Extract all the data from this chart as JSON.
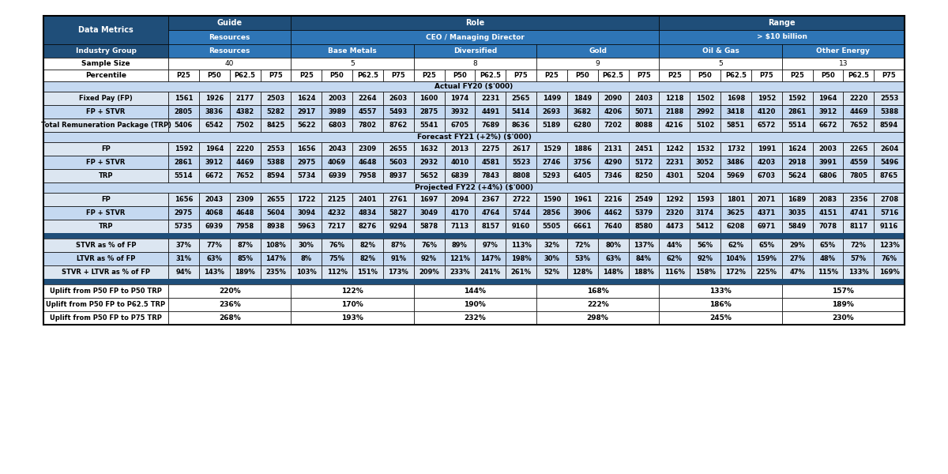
{
  "section1_rows": [
    [
      "Fixed Pay (FP)",
      "1561",
      "1926",
      "2177",
      "2503",
      "1624",
      "2003",
      "2264",
      "2603",
      "1600",
      "1974",
      "2231",
      "2565",
      "1499",
      "1849",
      "2090",
      "2403",
      "1218",
      "1502",
      "1698",
      "1952",
      "1592",
      "1964",
      "2220",
      "2553"
    ],
    [
      "FP + STVR",
      "2805",
      "3836",
      "4382",
      "5282",
      "2917",
      "3989",
      "4557",
      "5493",
      "2875",
      "3932",
      "4491",
      "5414",
      "2693",
      "3682",
      "4206",
      "5071",
      "2188",
      "2992",
      "3418",
      "4120",
      "2861",
      "3912",
      "4469",
      "5388"
    ],
    [
      "Total Remuneration Package (TRP)",
      "5406",
      "6542",
      "7502",
      "8425",
      "5622",
      "6803",
      "7802",
      "8762",
      "5541",
      "6705",
      "7689",
      "8636",
      "5189",
      "6280",
      "7202",
      "8088",
      "4216",
      "5102",
      "5851",
      "6572",
      "5514",
      "6672",
      "7652",
      "8594"
    ]
  ],
  "section2_rows": [
    [
      "FP",
      "1592",
      "1964",
      "2220",
      "2553",
      "1656",
      "2043",
      "2309",
      "2655",
      "1632",
      "2013",
      "2275",
      "2617",
      "1529",
      "1886",
      "2131",
      "2451",
      "1242",
      "1532",
      "1732",
      "1991",
      "1624",
      "2003",
      "2265",
      "2604"
    ],
    [
      "FP + STVR",
      "2861",
      "3912",
      "4469",
      "5388",
      "2975",
      "4069",
      "4648",
      "5603",
      "2932",
      "4010",
      "4581",
      "5523",
      "2746",
      "3756",
      "4290",
      "5172",
      "2231",
      "3052",
      "3486",
      "4203",
      "2918",
      "3991",
      "4559",
      "5496"
    ],
    [
      "TRP",
      "5514",
      "6672",
      "7652",
      "8594",
      "5734",
      "6939",
      "7958",
      "8937",
      "5652",
      "6839",
      "7843",
      "8808",
      "5293",
      "6405",
      "7346",
      "8250",
      "4301",
      "5204",
      "5969",
      "6703",
      "5624",
      "6806",
      "7805",
      "8765"
    ]
  ],
  "section3_rows": [
    [
      "FP",
      "1656",
      "2043",
      "2309",
      "2655",
      "1722",
      "2125",
      "2401",
      "2761",
      "1697",
      "2094",
      "2367",
      "2722",
      "1590",
      "1961",
      "2216",
      "2549",
      "1292",
      "1593",
      "1801",
      "2071",
      "1689",
      "2083",
      "2356",
      "2708"
    ],
    [
      "FP + STVR",
      "2975",
      "4068",
      "4648",
      "5604",
      "3094",
      "4232",
      "4834",
      "5827",
      "3049",
      "4170",
      "4764",
      "5744",
      "2856",
      "3906",
      "4462",
      "5379",
      "2320",
      "3174",
      "3625",
      "4371",
      "3035",
      "4151",
      "4741",
      "5716"
    ],
    [
      "TRP",
      "5735",
      "6939",
      "7958",
      "8938",
      "5963",
      "7217",
      "8276",
      "9294",
      "5878",
      "7113",
      "8157",
      "9160",
      "5505",
      "6661",
      "7640",
      "8580",
      "4473",
      "5412",
      "6208",
      "6971",
      "5849",
      "7078",
      "8117",
      "9116"
    ]
  ],
  "section4_rows": [
    [
      "STVR as % of FP",
      "37%",
      "77%",
      "87%",
      "108%",
      "30%",
      "76%",
      "82%",
      "87%",
      "76%",
      "89%",
      "97%",
      "113%",
      "32%",
      "72%",
      "80%",
      "137%",
      "44%",
      "56%",
      "62%",
      "65%",
      "29%",
      "65%",
      "72%",
      "123%"
    ],
    [
      "LTVR as % of FP",
      "31%",
      "63%",
      "85%",
      "147%",
      "8%",
      "75%",
      "82%",
      "91%",
      "92%",
      "121%",
      "147%",
      "198%",
      "30%",
      "53%",
      "63%",
      "84%",
      "62%",
      "92%",
      "104%",
      "159%",
      "27%",
      "48%",
      "57%",
      "76%"
    ],
    [
      "STVR + LTVR as % of FP",
      "94%",
      "143%",
      "189%",
      "235%",
      "103%",
      "112%",
      "151%",
      "173%",
      "209%",
      "233%",
      "241%",
      "261%",
      "52%",
      "128%",
      "148%",
      "188%",
      "116%",
      "158%",
      "172%",
      "225%",
      "47%",
      "115%",
      "133%",
      "169%"
    ]
  ],
  "uplift_labels": [
    "Uplift from P50 FP to P50 TRP",
    "Uplift from P50 FP to P62.5 TRP",
    "Uplift from P50 FP to P75 TRP"
  ],
  "uplift_vals": [
    [
      "220%",
      "122%",
      "144%",
      "168%",
      "133%",
      "157%"
    ],
    [
      "236%",
      "170%",
      "190%",
      "222%",
      "186%",
      "189%"
    ],
    [
      "268%",
      "193%",
      "232%",
      "298%",
      "245%",
      "230%"
    ]
  ],
  "colors": {
    "dark_blue": "#1F4E79",
    "medium_blue": "#2E75B6",
    "light_blue": "#C5D9F1",
    "lighter_blue": "#DCE6F1",
    "white": "#FFFFFF",
    "separator_blue": "#17375E"
  }
}
